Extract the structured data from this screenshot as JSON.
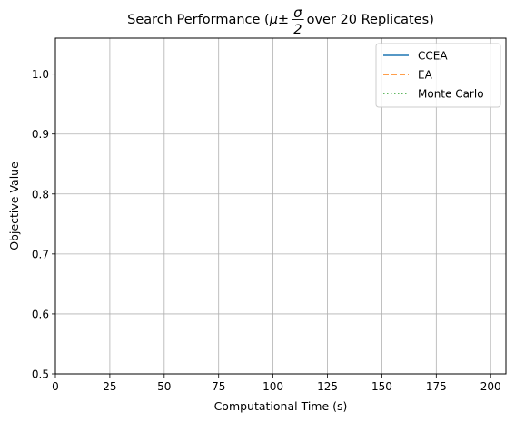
{
  "chart_data": {
    "type": "line",
    "title": {
      "prefix": "Search Performance (",
      "mu": "μ",
      "pm": "±",
      "frac_num": "σ",
      "frac_den": "2",
      "suffix": " over 20 Replicates)"
    },
    "xlabel": "Computational Time (s)",
    "ylabel": "Objective Value",
    "xlim": [
      0,
      207
    ],
    "ylim": [
      0.5,
      1.06
    ],
    "xticks": [
      0,
      25,
      50,
      75,
      100,
      125,
      150,
      175,
      200
    ],
    "xtick_labels": [
      "0",
      "25",
      "50",
      "75",
      "100",
      "125",
      "150",
      "175",
      "200"
    ],
    "yticks": [
      0.5,
      0.6,
      0.7,
      0.8,
      0.9,
      1.0
    ],
    "ytick_labels": [
      "0.5",
      "0.6",
      "0.7",
      "0.8",
      "0.9",
      "1.0"
    ],
    "grid": true,
    "legend_position": "top-right",
    "series": [
      {
        "name": "CCEA",
        "color": "#1f77b4",
        "linestyle": "solid",
        "x": [],
        "y": []
      },
      {
        "name": "EA",
        "color": "#ff7f0e",
        "linestyle": "dashed",
        "x": [],
        "y": []
      },
      {
        "name": "Monte Carlo",
        "color": "#2ca02c",
        "linestyle": "dotted",
        "x": [],
        "y": []
      }
    ]
  }
}
